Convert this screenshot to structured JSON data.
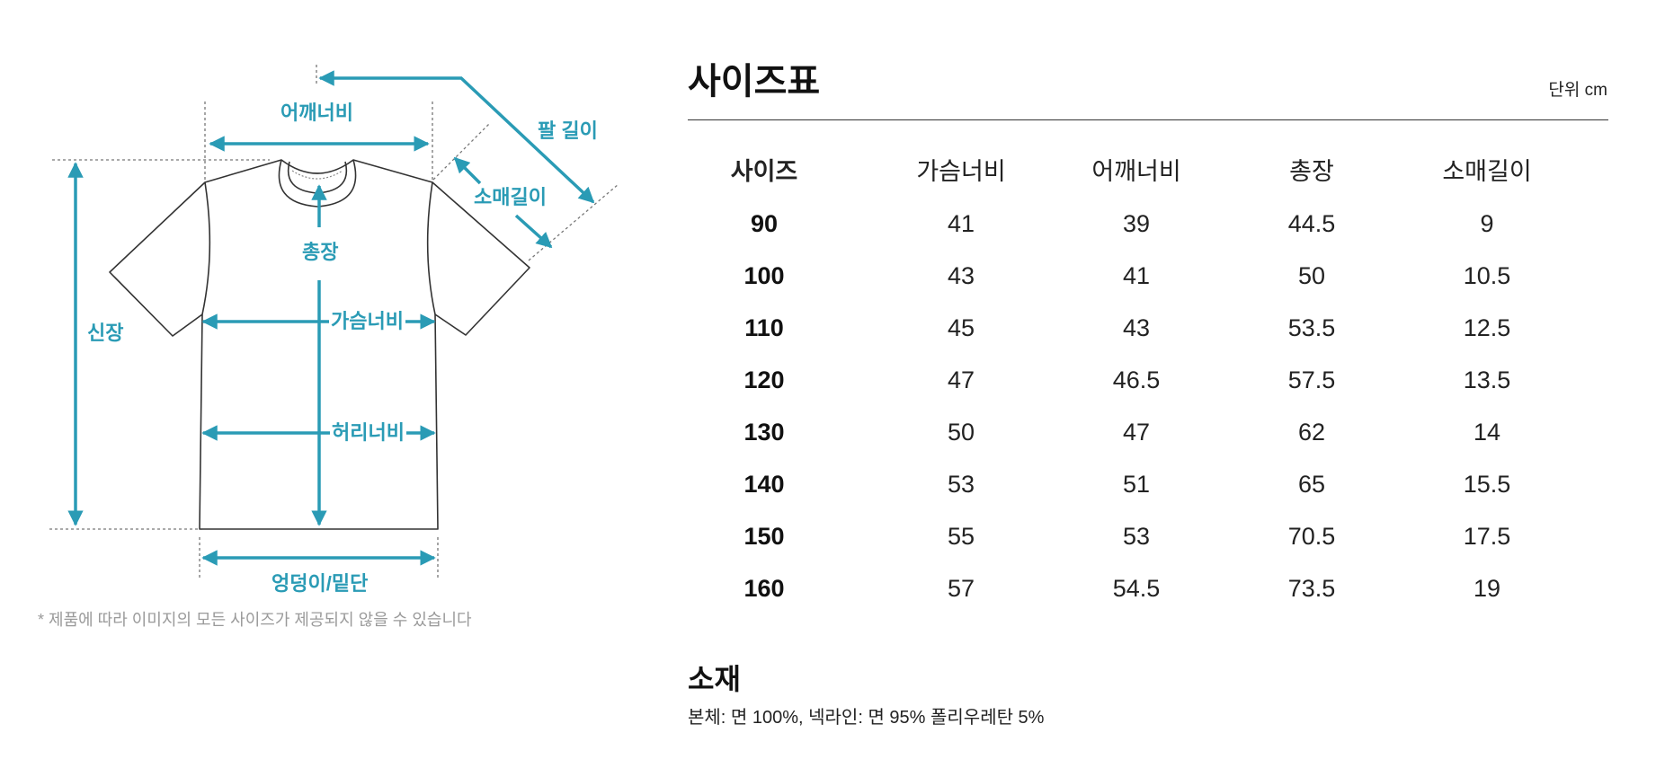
{
  "diagram": {
    "labels": {
      "shoulder": "어깨너비",
      "arm_length": "팔 길이",
      "sleeve": "소매길이",
      "length": "총장",
      "height": "신장",
      "chest": "가슴너비",
      "waist": "허리너비",
      "hem": "엉덩이/밑단"
    },
    "disclaimer": "* 제품에 따라 이미지의 모든 사이즈가 제공되지 않을 수 있습니다",
    "colors": {
      "accent": "#2a9bb5",
      "outline": "#333333",
      "guide": "#777777"
    }
  },
  "size_table": {
    "title": "사이즈표",
    "unit": "단위 cm",
    "headers": [
      "사이즈",
      "가슴너비",
      "어깨너비",
      "총장",
      "소매길이"
    ],
    "rows": [
      [
        "90",
        "41",
        "39",
        "44.5",
        "9"
      ],
      [
        "100",
        "43",
        "41",
        "50",
        "10.5"
      ],
      [
        "110",
        "45",
        "43",
        "53.5",
        "12.5"
      ],
      [
        "120",
        "47",
        "46.5",
        "57.5",
        "13.5"
      ],
      [
        "130",
        "50",
        "47",
        "62",
        "14"
      ],
      [
        "140",
        "53",
        "51",
        "65",
        "15.5"
      ],
      [
        "150",
        "55",
        "53",
        "70.5",
        "17.5"
      ],
      [
        "160",
        "57",
        "54.5",
        "73.5",
        "19"
      ]
    ]
  },
  "material": {
    "title": "소재",
    "text": "본체: 면 100%, 넥라인: 면 95% 폴리우레탄 5%"
  }
}
